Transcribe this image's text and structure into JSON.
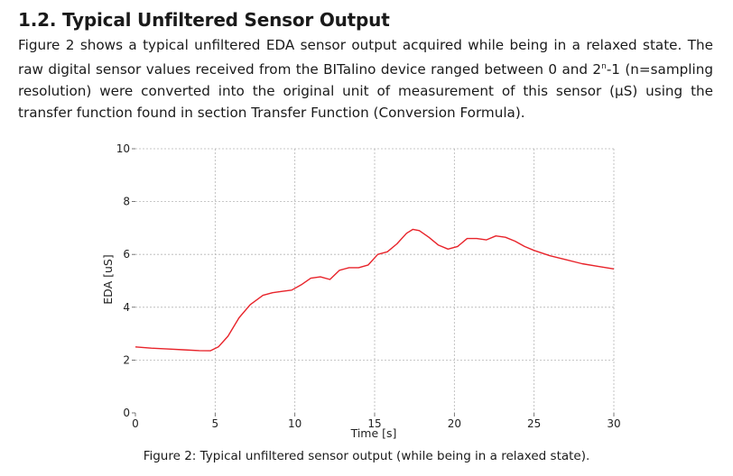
{
  "section": {
    "title": "1.2. Typical Unfiltered Sensor Output",
    "paragraph_start": "Figure 2 shows a typical unfiltered EDA sensor output acquired while being in a relaxed state. The raw digital sensor values received from the BITalino device ranged between 0 and 2",
    "paragraph_sup": "n",
    "paragraph_end": "-1 (n=sampling resolution) were converted into the original unit of measurement of this sensor (µS) using the transfer function found in section Transfer Function (Conversion Formula)."
  },
  "figure": {
    "caption": "Figure 2: Typical unfiltered sensor output (while being in a relaxed state)."
  },
  "chart_data": {
    "type": "line",
    "title": "",
    "xlabel": "Time [s]",
    "ylabel": "EDA [uS]",
    "xlim": [
      0,
      30
    ],
    "ylim": [
      0,
      10
    ],
    "xticks": [
      0,
      5,
      10,
      15,
      20,
      25,
      30
    ],
    "yticks": [
      0,
      2,
      4,
      6,
      8,
      10
    ],
    "grid": true,
    "series": [
      {
        "color": "#e8232a",
        "x": [
          0,
          1,
          2,
          3,
          4,
          4.7,
          5.2,
          5.8,
          6.5,
          7.2,
          8.0,
          8.6,
          9.2,
          9.8,
          10.4,
          11.0,
          11.6,
          12.2,
          12.8,
          13.4,
          14.0,
          14.6,
          15.2,
          15.8,
          16.4,
          17.0,
          17.4,
          17.8,
          18.4,
          19.0,
          19.6,
          20.2,
          20.8,
          21.4,
          22.0,
          22.6,
          23.2,
          23.8,
          24.4,
          25.0,
          26.0,
          27.0,
          28.0,
          29.0,
          30.0
        ],
        "y": [
          2.5,
          2.45,
          2.42,
          2.39,
          2.36,
          2.35,
          2.5,
          2.9,
          3.6,
          4.1,
          4.45,
          4.55,
          4.6,
          4.65,
          4.85,
          5.1,
          5.15,
          5.05,
          5.4,
          5.5,
          5.5,
          5.6,
          6.0,
          6.1,
          6.4,
          6.8,
          6.95,
          6.9,
          6.65,
          6.35,
          6.2,
          6.3,
          6.6,
          6.6,
          6.55,
          6.7,
          6.65,
          6.5,
          6.3,
          6.15,
          5.95,
          5.8,
          5.65,
          5.55,
          5.45
        ]
      }
    ]
  }
}
